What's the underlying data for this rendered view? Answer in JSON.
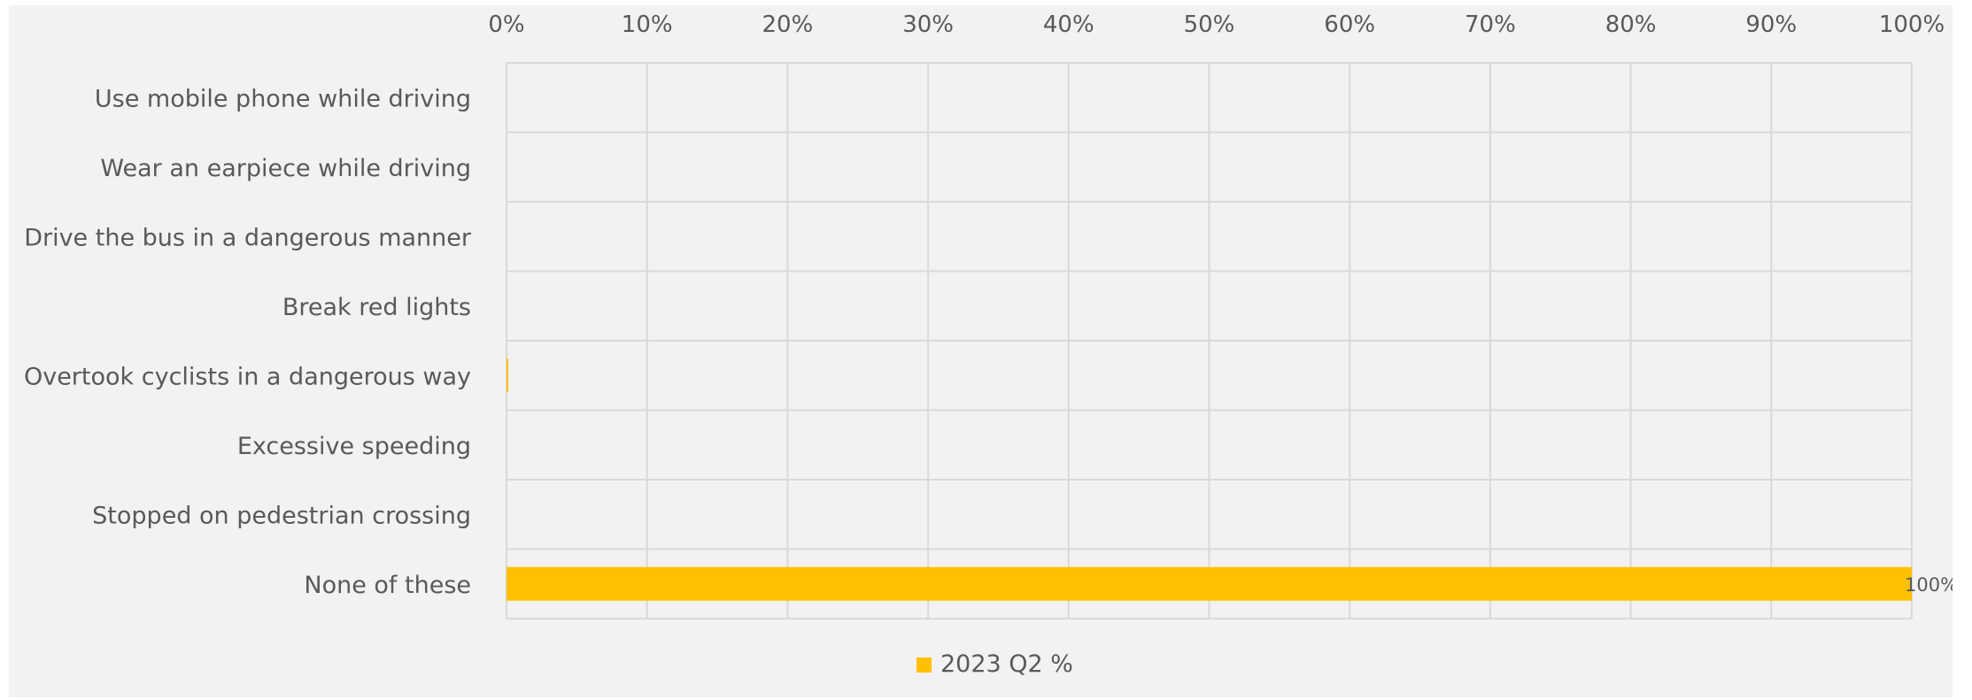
{
  "chart_data": {
    "type": "bar",
    "orientation": "horizontal",
    "categories": [
      "Use mobile phone while driving",
      "Wear an earpiece while driving",
      "Drive the bus in a dangerous manner",
      "Break red lights",
      "Overtook cyclists in a dangerous way",
      "Excessive speeding",
      "Stopped on pedestrian crossing",
      "None of these"
    ],
    "series": [
      {
        "name": "2023 Q2 %",
        "color": "#FFC000",
        "values": [
          0,
          0,
          0,
          0,
          0.1,
          0,
          0,
          100
        ],
        "data_labels": [
          "",
          "",
          "",
          "",
          "",
          "",
          "",
          "100%"
        ]
      }
    ],
    "xlim": [
      0,
      100
    ],
    "x_ticks": [
      "0%",
      "10%",
      "20%",
      "30%",
      "40%",
      "50%",
      "60%",
      "70%",
      "80%",
      "90%",
      "100%"
    ],
    "x_axis_position": "top",
    "grid": true,
    "legend_position": "bottom",
    "background_color": "#F2F2F2",
    "grid_color": "#D9D9D9",
    "text_color": "#595959"
  }
}
